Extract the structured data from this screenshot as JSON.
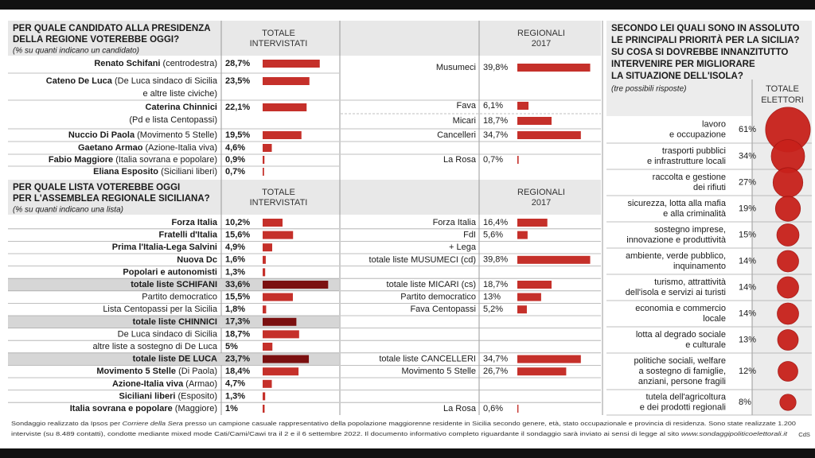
{
  "candidates": {
    "title": [
      "PER QUALE CANDIDATO ALLA PRESIDENZA",
      "DELLA REGIONE VOTEREBBE OGGI?"
    ],
    "subtitle": "(% su quanti indicano un candidato)",
    "col_total": [
      "TOTALE",
      "INTERVISTATI"
    ],
    "col_2017": [
      "REGIONALI",
      "2017"
    ],
    "rows": [
      {
        "name": "Renato Schifani",
        "detail": "(centrodestra)",
        "value": 28.7,
        "label": "28,7%"
      },
      {
        "name": "Cateno De Luca",
        "detail": "(De Luca sindaco di Sicilia",
        "line2": "e altre liste civiche)",
        "value": 23.5,
        "label": "23,5%"
      },
      {
        "name": "Caterina Chinnici",
        "line2": "(Pd e lista Centopassi)",
        "value": 22.1,
        "label": "22,1%"
      },
      {
        "name": "Nuccio Di Paola",
        "detail": "(Movimento 5 Stelle)",
        "value": 19.5,
        "label": "19,5%"
      },
      {
        "name": "Gaetano Armao",
        "detail": "(Azione-Italia viva)",
        "value": 4.6,
        "label": "4,6%"
      },
      {
        "name": "Fabio Maggiore",
        "detail": "(Italia sovrana e popolare)",
        "value": 0.9,
        "label": "0,9%"
      },
      {
        "name": "Eliana Esposito",
        "detail": "(Siciliani liberi)",
        "value": 0.7,
        "label": "0,7%"
      }
    ],
    "rows_2017": [
      {
        "text": "Musumeci",
        "value": 39.8,
        "label": "39,8%"
      },
      {
        "text": "Fava",
        "value": 6.1,
        "label": "6,1%"
      },
      {
        "text": "Micari",
        "value": 18.7,
        "label": "18,7%"
      },
      {
        "text": "Cancelleri",
        "value": 34.7,
        "label": "34,7%"
      },
      {
        "text": "La Rosa",
        "value": 0.7,
        "label": "0,7%"
      }
    ]
  },
  "lists": {
    "title": [
      "PER QUALE LISTA VOTEREBBE OGGI",
      "PER L'ASSEMBLEA REGIONALE SICILIANA?"
    ],
    "subtitle": "(% su quanti indicano una lista)",
    "col_total": [
      "TOTALE",
      "INTERVISTATI"
    ],
    "col_2017": [
      "REGIONALI",
      "2017"
    ],
    "rows": [
      {
        "name": "Forza Italia",
        "value": 10.2,
        "label": "10,2%"
      },
      {
        "name": "Fratelli d'Italia",
        "value": 15.6,
        "label": "15,6%"
      },
      {
        "name": "Prima l'Italia-Lega Salvini",
        "value": 4.9,
        "label": "4,9%"
      },
      {
        "name": "Nuova Dc",
        "value": 1.6,
        "label": "1,6%"
      },
      {
        "name": "Popolari e autonomisti",
        "value": 1.3,
        "label": "1,3%"
      },
      {
        "name": "totale liste SCHIFANI",
        "value": 33.6,
        "label": "33,6%",
        "total": true
      },
      {
        "text": "Partito democratico",
        "value": 15.5,
        "label": "15,5%"
      },
      {
        "text": "Lista Centopassi per la Sicilia",
        "value": 1.8,
        "label": "1,8%"
      },
      {
        "name": "totale liste CHINNICI",
        "value": 17.3,
        "label": "17,3%",
        "total": true
      },
      {
        "text": "De Luca sindaco di Sicilia",
        "value": 18.7,
        "label": "18,7%"
      },
      {
        "text": "altre liste a sostegno di De Luca",
        "value": 5,
        "label": "5%"
      },
      {
        "name": "totale liste DE LUCA",
        "value": 23.7,
        "label": "23,7%",
        "total": true
      },
      {
        "name": "Movimento 5 Stelle",
        "detail": "(Di Paola)",
        "value": 18.4,
        "label": "18,4%"
      },
      {
        "name": "Azione-Italia viva",
        "detail": "(Armao)",
        "value": 4.7,
        "label": "4,7%"
      },
      {
        "name": "Siciliani liberi",
        "detail": "(Esposito)",
        "value": 1.3,
        "label": "1,3%"
      },
      {
        "name": "Italia sovrana e popolare",
        "detail": "(Maggiore)",
        "value": 1,
        "label": "1%"
      }
    ],
    "rows_2017": [
      {
        "text": "Forza Italia",
        "value": 16.4,
        "label": "16,4%"
      },
      {
        "text": "FdI",
        "line2": "+ Lega",
        "value": 5.6,
        "label": "5,6%"
      },
      {
        "text": "totale liste MUSUMECI (cd)",
        "value": 39.8,
        "label": "39,8%"
      },
      {
        "text": "totale liste MICARI (cs)",
        "value": 18.7,
        "label": "18,7%"
      },
      {
        "text": "Partito democratico",
        "value": 13,
        "label": "13%"
      },
      {
        "text": "Fava Centopassi",
        "value": 5.2,
        "label": "5,2%"
      },
      {
        "text": "totale liste CANCELLERI",
        "value": 34.7,
        "label": "34,7%"
      },
      {
        "text": "Movimento 5 Stelle",
        "value": 26.7,
        "label": "26,7%"
      },
      {
        "text": "La Rosa",
        "value": 0.6,
        "label": "0,6%"
      }
    ]
  },
  "priorities": {
    "title": [
      "SECONDO LEI QUALI SONO IN ASSOLUTO",
      "LE PRINCIPALI PRIORITÀ PER LA SICILIA?",
      "SU COSA SI DOVREBBE INNANZITUTTO",
      "INTERVENIRE PER MIGLIORARE",
      "LA SITUAZIONE DELL'ISOLA?"
    ],
    "subtitle": "(tre possibili risposte)",
    "col_total": [
      "TOTALE",
      "ELETTORI"
    ],
    "rows": [
      {
        "lines": [
          "lavoro",
          "e occupazione"
        ],
        "value": 61,
        "label": "61%"
      },
      {
        "lines": [
          "trasporti pubblici",
          "e infrastrutture locali"
        ],
        "value": 34,
        "label": "34%"
      },
      {
        "lines": [
          "raccolta e gestione",
          "dei rifiuti"
        ],
        "value": 27,
        "label": "27%"
      },
      {
        "lines": [
          "sicurezza, lotta alla mafia",
          "e alla criminalità"
        ],
        "value": 19,
        "label": "19%"
      },
      {
        "lines": [
          "sostegno imprese,",
          "innovazione e produttività"
        ],
        "value": 15,
        "label": "15%"
      },
      {
        "lines": [
          "ambiente, verde pubblico,",
          "inquinamento"
        ],
        "value": 14,
        "label": "14%"
      },
      {
        "lines": [
          "turismo, attrattività",
          "dell'isola e servizi ai turisti"
        ],
        "value": 14,
        "label": "14%"
      },
      {
        "lines": [
          "economia e commercio",
          "locale"
        ],
        "value": 14,
        "label": "14%"
      },
      {
        "lines": [
          "lotta al degrado sociale",
          "e culturale"
        ],
        "value": 13,
        "label": "13%"
      },
      {
        "lines": [
          "politiche sociali, welfare",
          "a sostegno di famiglie,",
          "anziani, persone fragili"
        ],
        "value": 12,
        "label": "12%"
      },
      {
        "lines": [
          "tutela dell'agricoltura",
          "e dei prodotti regionali"
        ],
        "value": 8,
        "label": "8%"
      }
    ]
  },
  "footer": {
    "line1": [
      "Sondaggio realizzato da Ipsos per ",
      "Corriere della Sera",
      " presso un campione casuale  rappresentativo della popolazione maggiorenne residente in Sicilia secondo genere, età, stato occupazionale e provincia di residenza. Sono state realizzate 1.200"
    ],
    "line2": [
      "interviste (su 8.489 contatti), condotte mediante mixed mode Cati/Cami/Cawi tra il 2 e il 6 settembre 2022. Il documento informativo completo riguardante il sondaggio sarà inviato ai sensi di legge al sito ",
      "www.sondaggipoliticoelettorali.it"
    ],
    "credit": "CdS"
  }
}
